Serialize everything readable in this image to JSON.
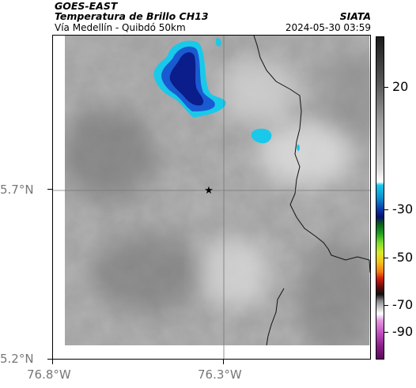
{
  "header": {
    "satellite": "GOES-EAST",
    "product": "Temperatura de Brillo CH13",
    "domain": "Vía Medellín - Quibdó 50km",
    "organization": "SIATA",
    "timestamp": "2024-05-30 03:59"
  },
  "map": {
    "lat_ticks": [
      "5.7°N",
      "5.2°N"
    ],
    "lon_ticks": [
      "76.8°W",
      "76.3°W"
    ],
    "marker": "★",
    "gridlines": true
  },
  "colorbar": {
    "tick_labels": [
      "20",
      "-30",
      "-50",
      "-70",
      "-90"
    ]
  },
  "colors": {
    "cold_cloud_dark": "#0a1d8a",
    "cold_cloud_mid": "#1a5ad1",
    "cold_cloud_light": "#19c9ea",
    "land_gray": "#9c9c9c"
  }
}
